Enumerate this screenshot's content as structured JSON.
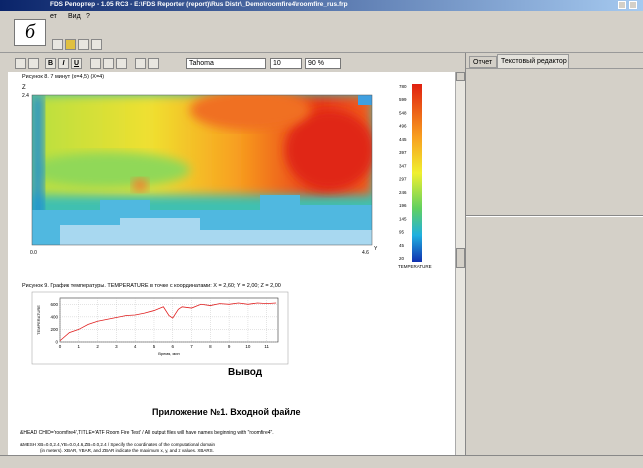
{
  "window": {
    "title": "FDS Репортер - 1.05 RC3 - E:\\FDS Reporter (report)\\Rus Distr\\_Demo\\roomfire4\\roomfire_rus.frp",
    "menu": [
      "ет",
      "Вид",
      "?"
    ]
  },
  "figure_label": "б",
  "toolbar": {
    "format": [
      "B",
      "I",
      "U"
    ],
    "font": "Tahoma",
    "size": "10",
    "zoom": "90 %"
  },
  "tabs": [
    "Отчет",
    "Текстовый редактор"
  ],
  "document": {
    "figure8": {
      "caption": "Рисунок 8. 7 минут (x=4,5) (X=4)",
      "z_label": "Z",
      "z_max": "2.4",
      "y_min": "0.0",
      "y_max": "4.6",
      "y_label": "Y",
      "colorbar_labels": [
        "780",
        "599",
        "548",
        "496",
        "445",
        "397",
        "347",
        "297",
        "246",
        "196",
        "145",
        "95",
        "45",
        "20"
      ],
      "colorbar_title": "TEMPERATURE"
    },
    "figure9": {
      "caption": "Рисунок 9. График температуры. TEMPERATURE в точке с координатами: X = 2,60; Y = 2,00; Z = 2,00",
      "chart": {
        "type": "line",
        "ylabel": "TEMPERATURE",
        "xlabel": "Время, мин",
        "x": [
          0,
          0.5,
          1,
          1.5,
          2,
          2.5,
          3,
          3.5,
          4,
          4.5,
          5,
          5.5,
          5.8,
          6,
          6.3,
          6.5,
          7,
          7.5,
          8,
          8.5,
          9,
          9.5,
          10,
          10.5,
          11,
          11.5
        ],
        "values": [
          20,
          150,
          200,
          280,
          330,
          360,
          390,
          420,
          430,
          460,
          500,
          560,
          420,
          380,
          520,
          560,
          540,
          600,
          580,
          610,
          600,
          620,
          600,
          620,
          610,
          620
        ],
        "color": "#e02020",
        "xlim": [
          0,
          11.6
        ],
        "ylim": [
          0,
          700
        ],
        "xticks": [
          0,
          1,
          2,
          3,
          4,
          5,
          6,
          7,
          8,
          9,
          10,
          11
        ],
        "yticks": [
          0,
          200,
          400,
          600
        ],
        "grid": true
      }
    },
    "heading_output": "Вывод",
    "heading_appendix": "Приложение №1. Входной файле",
    "code_lines": [
      "&HEAD CHID='roomfire4',TITLE='ATF Room Fire Test' / All output files will have names beginning with \"roomfire4\".",
      "&MESH XB=0.0,2.4,YB=0.0,4.6,ZB=0.0,2.4 / Specify the coordinates of the computational domain",
      "(in meters). XBAR, YBAR, and ZBAR indicate the maximum x, y, and z values. XBARS."
    ]
  }
}
